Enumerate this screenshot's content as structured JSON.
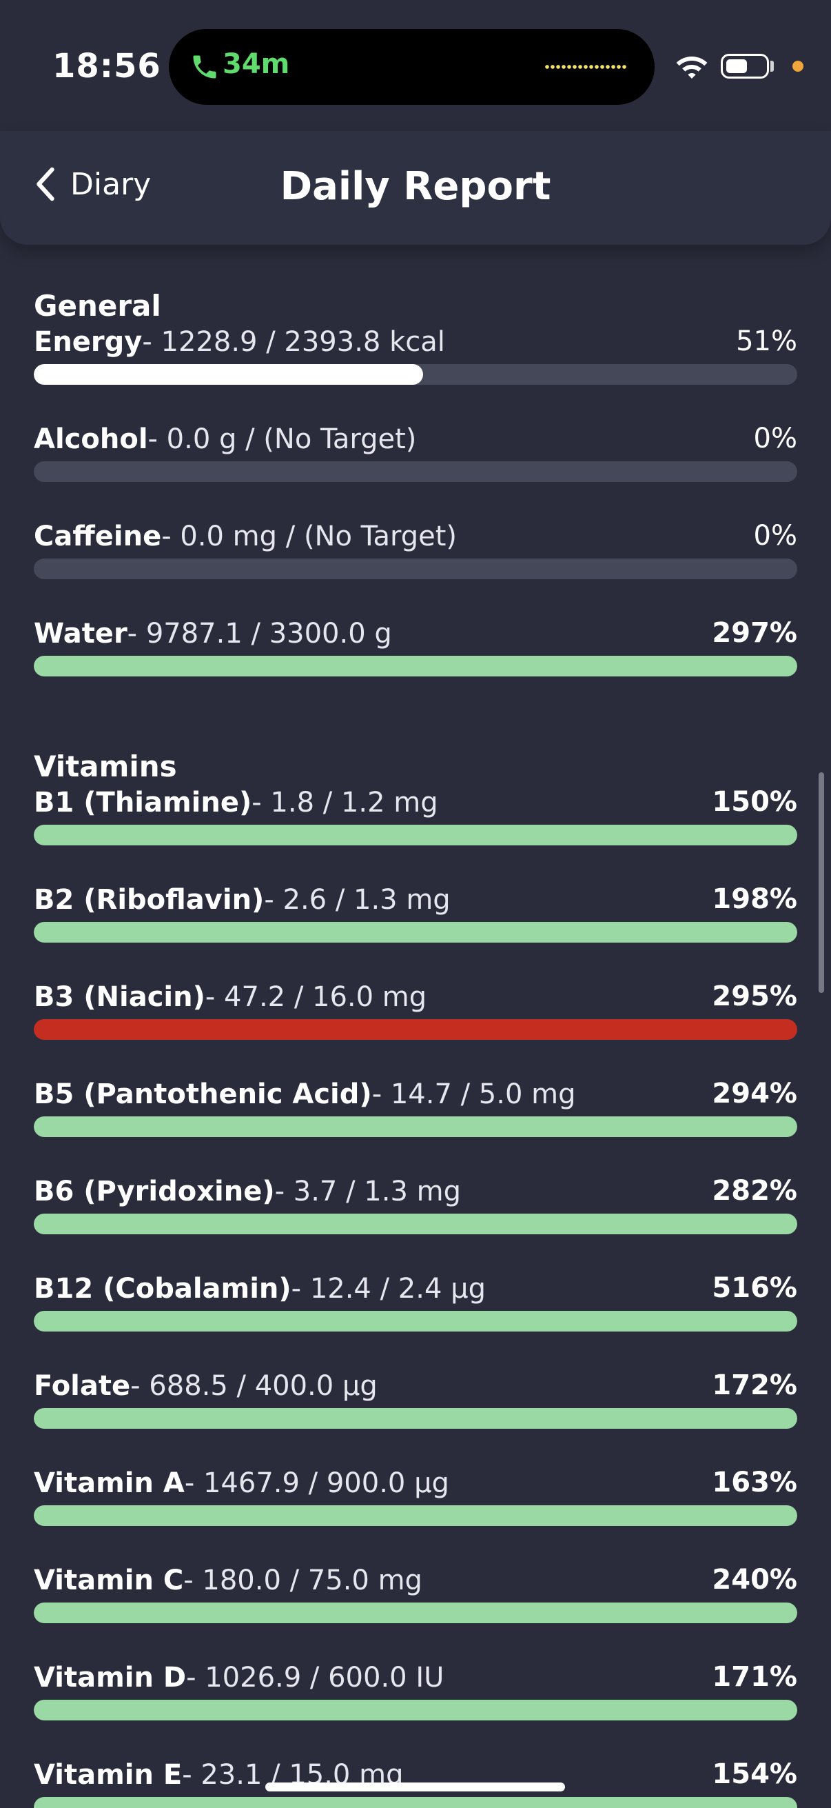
{
  "status_bar": {
    "time": "18:56",
    "call_duration": "34m",
    "call_color": "#5fdc6d",
    "battery_level": 0.55
  },
  "nav": {
    "back_label": "Diary",
    "title": "Daily Report"
  },
  "colors": {
    "background": "#2a2c3b",
    "track": "#454858",
    "good": "#9bd9a4",
    "over": "#c42d20",
    "neutral": "#ffffff"
  },
  "sections": [
    {
      "title": "General",
      "items": [
        {
          "name": "Energy",
          "amount": "- 1228.9 / 2393.8 kcal",
          "percent": "51%",
          "fill": 0.51,
          "status": "neutral",
          "bold": false
        },
        {
          "name": "Alcohol",
          "amount": "- 0.0 g / (No Target)",
          "percent": "0%",
          "fill": 0,
          "status": "neutral",
          "bold": false
        },
        {
          "name": "Caffeine",
          "amount": "- 0.0 mg / (No Target)",
          "percent": "0%",
          "fill": 0,
          "status": "neutral",
          "bold": false
        },
        {
          "name": "Water",
          "amount": "- 9787.1 / 3300.0 g",
          "percent": "297%",
          "fill": 1,
          "status": "good",
          "bold": true
        }
      ]
    },
    {
      "title": "Vitamins",
      "items": [
        {
          "name": "B1 (Thiamine)",
          "amount": "- 1.8 / 1.2 mg",
          "percent": "150%",
          "fill": 1,
          "status": "good",
          "bold": true
        },
        {
          "name": "B2 (Riboflavin)",
          "amount": "- 2.6 / 1.3 mg",
          "percent": "198%",
          "fill": 1,
          "status": "good",
          "bold": true
        },
        {
          "name": "B3 (Niacin)",
          "amount": "- 47.2 / 16.0 mg",
          "percent": "295%",
          "fill": 1,
          "status": "over",
          "bold": true
        },
        {
          "name": "B5 (Pantothenic Acid)",
          "amount": "- 14.7 / 5.0 mg",
          "percent": "294%",
          "fill": 1,
          "status": "good",
          "bold": true
        },
        {
          "name": "B6 (Pyridoxine)",
          "amount": "- 3.7 / 1.3 mg",
          "percent": "282%",
          "fill": 1,
          "status": "good",
          "bold": true
        },
        {
          "name": "B12 (Cobalamin)",
          "amount": "- 12.4 / 2.4 µg",
          "percent": "516%",
          "fill": 1,
          "status": "good",
          "bold": true
        },
        {
          "name": "Folate",
          "amount": "- 688.5 / 400.0 µg",
          "percent": "172%",
          "fill": 1,
          "status": "good",
          "bold": true
        },
        {
          "name": "Vitamin A",
          "amount": "- 1467.9 / 900.0 µg",
          "percent": "163%",
          "fill": 1,
          "status": "good",
          "bold": true
        },
        {
          "name": "Vitamin C",
          "amount": "- 180.0 / 75.0 mg",
          "percent": "240%",
          "fill": 1,
          "status": "good",
          "bold": true
        },
        {
          "name": "Vitamin D",
          "amount": "- 1026.9 / 600.0 IU",
          "percent": "171%",
          "fill": 1,
          "status": "good",
          "bold": true
        },
        {
          "name": "Vitamin E",
          "amount": "- 23.1 / 15.0 mg",
          "percent": "154%",
          "fill": 1,
          "status": "good",
          "bold": true
        }
      ]
    }
  ]
}
